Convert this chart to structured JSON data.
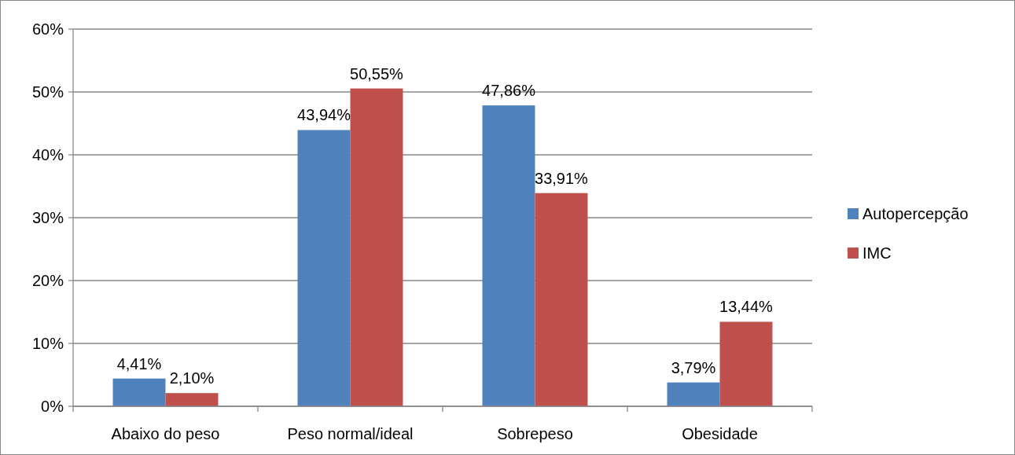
{
  "chart_data": {
    "type": "bar",
    "categories": [
      "Abaixo do peso",
      "Peso normal/ideal",
      "Sobrepeso",
      "Obesidade"
    ],
    "series": [
      {
        "name": "Autopercepção",
        "color": "#4f81bd",
        "values": [
          4.41,
          43.94,
          47.86,
          3.79
        ],
        "value_labels": [
          "4,41%",
          "43,94%",
          "47,86%",
          "3,79%"
        ]
      },
      {
        "name": "IMC",
        "color": "#c0504d",
        "values": [
          2.1,
          50.55,
          33.91,
          13.44
        ],
        "value_labels": [
          "2,10%",
          "50,55%",
          "33,91%",
          "13,44%"
        ]
      }
    ],
    "ylim": [
      0,
      60
    ],
    "yticks": [
      {
        "value": 0,
        "label": "0%"
      },
      {
        "value": 10,
        "label": "10%"
      },
      {
        "value": 20,
        "label": "20%"
      },
      {
        "value": 30,
        "label": "30%"
      },
      {
        "value": 40,
        "label": "40%"
      },
      {
        "value": 50,
        "label": "50%"
      },
      {
        "value": 60,
        "label": "60%"
      }
    ],
    "grid": "y",
    "legend": "right"
  }
}
